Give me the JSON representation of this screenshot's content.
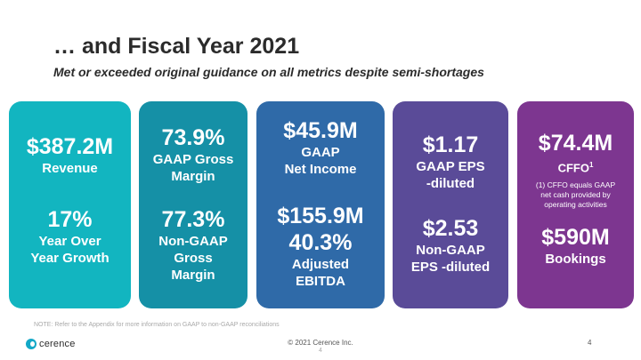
{
  "slide": {
    "title": "… and Fiscal Year 2021",
    "subtitle": "Met or exceeded original guidance on all metrics despite semi-shortages"
  },
  "cards": [
    {
      "color": "#12b5c0",
      "metric1_value": "$387.2M",
      "metric1_label": "Revenue",
      "metric2_value": "17%",
      "metric2_label_line1": "Year Over",
      "metric2_label_line2": "Year Growth"
    },
    {
      "color": "#1590a6",
      "metric1_value": "73.9%",
      "metric1_label_line1": "GAAP Gross",
      "metric1_label_line2": "Margin",
      "metric2_value": "77.3%",
      "metric2_label_line1": "Non-GAAP",
      "metric2_label_line2": "Gross",
      "metric2_label_line3": "Margin"
    },
    {
      "color": "#2f6aa8",
      "metric1_value": "$45.9M",
      "metric1_label_line1": "GAAP",
      "metric1_label_line2": "Net Income",
      "metric2_value": "$155.9M",
      "metric3_value": "40.3%",
      "metric2_label_line1": "Adjusted",
      "metric2_label_line2": "EBITDA"
    },
    {
      "color": "#5a4b98",
      "metric1_value": "$1.17",
      "metric1_label_line1": "GAAP EPS",
      "metric1_label_line2": "-diluted",
      "metric2_value": "$2.53",
      "metric2_label_line1": "Non-GAAP",
      "metric2_label_line2": "EPS -diluted"
    },
    {
      "color": "#7d3690",
      "metric1_value": "$74.4M",
      "metric1_label": "CFFO",
      "metric1_sup": "1",
      "note_line1": "(1) CFFO equals GAAP",
      "note_line2": "net cash provided by",
      "note_line3": "operating activities",
      "metric2_value": "$590M",
      "metric2_label": "Bookings"
    }
  ],
  "footer": {
    "note": "NOTE: Refer to the Appendix for more information on GAAP to non-GAAP reconciliations",
    "copyright": "© 2021 Cerence Inc.",
    "page_number_center": "4",
    "page_number": "4",
    "logo_text": "cerence",
    "logo_icon": "cerence-logo-icon"
  }
}
